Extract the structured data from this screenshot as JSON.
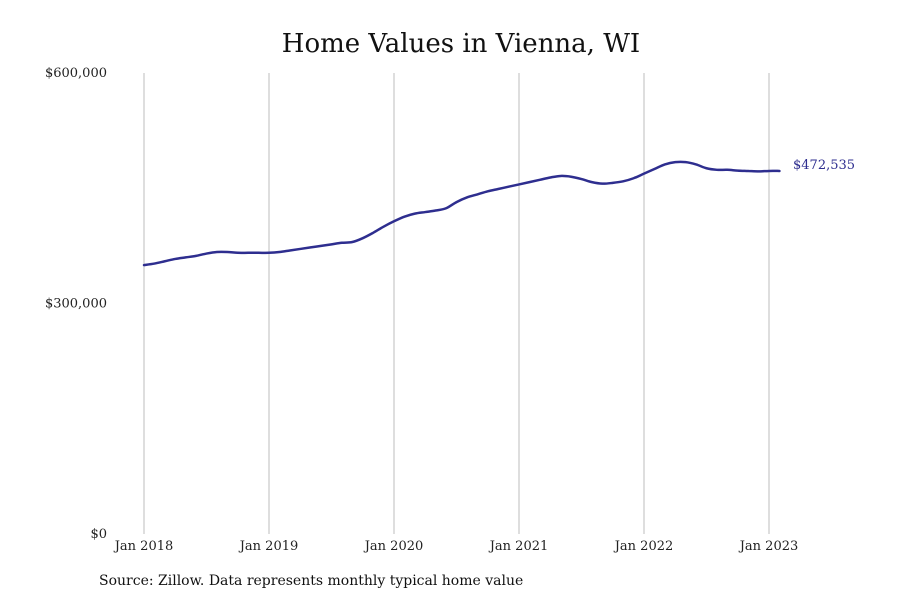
{
  "chart_data": {
    "type": "line",
    "title": "Home Values in Vienna, WI",
    "source_note": "Source: Zillow. Data represents monthly typical home value",
    "xlabel": "",
    "ylabel": "",
    "x_tick_labels": [
      "Jan 2018",
      "Jan 2019",
      "Jan 2020",
      "Jan 2021",
      "Jan 2022",
      "Jan 2023"
    ],
    "y_tick_labels": [
      "$600,000",
      "$300,000",
      "$0"
    ],
    "y_ticks": [
      600000,
      300000,
      0
    ],
    "ylim": [
      0,
      600000
    ],
    "xlim": [
      "2018-01",
      "2023-09"
    ],
    "grid": "vertical",
    "end_label": "$472,535",
    "line_color": "#2e2e8f",
    "series": [
      {
        "x": [
          "2018-01",
          "2018-02",
          "2018-03",
          "2018-04",
          "2018-05",
          "2018-06",
          "2018-07",
          "2018-08",
          "2018-09",
          "2018-10",
          "2018-11",
          "2018-12",
          "2019-01",
          "2019-02",
          "2019-03",
          "2019-04",
          "2019-05",
          "2019-06",
          "2019-07",
          "2019-08",
          "2019-09",
          "2019-10",
          "2019-11",
          "2019-12",
          "2020-01",
          "2020-02",
          "2020-03",
          "2020-04",
          "2020-05",
          "2020-06",
          "2020-07",
          "2020-08",
          "2020-09",
          "2020-10",
          "2020-11",
          "2020-12",
          "2021-01",
          "2021-02",
          "2021-03",
          "2021-04",
          "2021-05",
          "2021-06",
          "2021-07",
          "2021-08",
          "2021-09",
          "2021-10",
          "2021-11",
          "2021-12",
          "2022-01",
          "2022-02",
          "2022-03",
          "2022-04",
          "2022-05",
          "2022-06",
          "2022-07",
          "2022-08",
          "2022-09",
          "2022-10",
          "2022-11",
          "2022-12",
          "2023-01",
          "2023-02"
        ],
        "values": [
          350000,
          352000,
          355000,
          358000,
          360000,
          362000,
          365000,
          367000,
          367000,
          366000,
          366000,
          366000,
          366000,
          367000,
          369000,
          371000,
          373000,
          375000,
          377000,
          379000,
          380000,
          385000,
          392000,
          400000,
          407000,
          413000,
          417000,
          419000,
          421000,
          424000,
          432000,
          438000,
          442000,
          446000,
          449000,
          452000,
          455000,
          458000,
          461000,
          464000,
          466000,
          465000,
          462000,
          458000,
          456000,
          457000,
          459000,
          463000,
          469000,
          475000,
          481000,
          484000,
          484000,
          481000,
          476000,
          474000,
          474000,
          473000,
          472500,
          472000,
          472535,
          472535
        ]
      }
    ]
  }
}
